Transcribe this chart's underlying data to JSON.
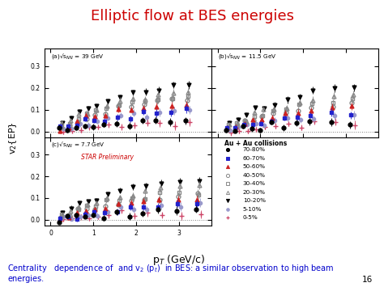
{
  "title": "Elliptic flow at BES energies",
  "title_color": "#cc0000",
  "title_fontsize": 13,
  "xlabel": "p$_T$ (GeV/c)",
  "ylabel": "v$_2${EP}",
  "panel_labels": [
    "(a)\\u221as$_{NN}$ = 39 GeV",
    "(b)\\u221as$_{NN}$ = 11.5 GeV",
    "(c)\\u221as$_{NN}$ = 7.7 GeV"
  ],
  "legend_title": "Au + Au collisions",
  "legend_entries": [
    "70-80%",
    "60-70%",
    "50-60%",
    "40-50%",
    "30-40%",
    "20-30%",
    "10-20%",
    "5-10%",
    "0-5%"
  ],
  "star_preliminary_color": "#cc0000",
  "caption_color": "#0000cc",
  "page_number": "16",
  "background_color": "#ffffff",
  "ylim": [
    -0.025,
    0.38
  ],
  "xlim": [
    -0.15,
    3.75
  ]
}
